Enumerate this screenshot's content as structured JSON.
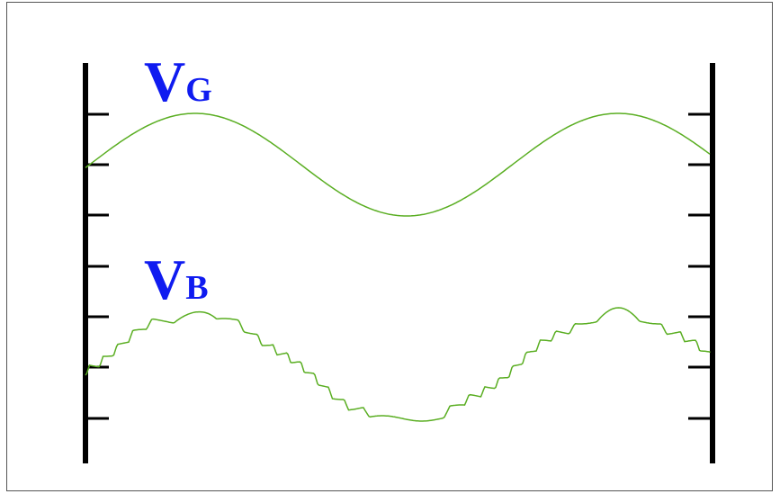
{
  "labels": [
    {
      "main": "V",
      "sub": "G"
    },
    {
      "main": "V",
      "sub": "B"
    }
  ]
}
